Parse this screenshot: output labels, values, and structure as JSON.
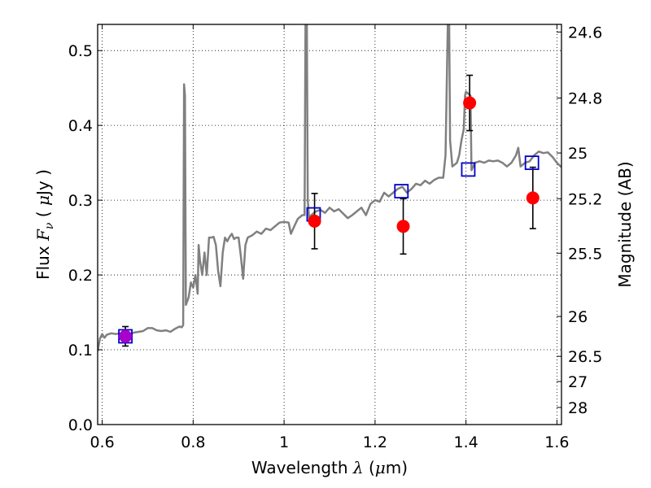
{
  "chart_data": {
    "type": "scatter",
    "title": "",
    "xlabel": "Wavelength  λ (μm)",
    "xlabel_parts": [
      "Wavelength  ",
      "λ",
      " (",
      "μ",
      "m)"
    ],
    "ylabel": "Flux  Fν  ( μJy )",
    "ylabel_parts": [
      "Flux  ",
      "F",
      "ν",
      "  ( ",
      "μ",
      "Jy )"
    ],
    "y2label": "Magnitude (AB)",
    "xlim": [
      0.59,
      1.61
    ],
    "ylim": [
      0.0,
      0.535
    ],
    "x_ticks": [
      0.6,
      0.8,
      1.0,
      1.2,
      1.4,
      1.6
    ],
    "x_tick_labels": [
      "0.6",
      "0.8",
      "1",
      "1.2",
      "1.4",
      "1.6"
    ],
    "y_ticks": [
      0.0,
      0.1,
      0.2,
      0.3,
      0.4,
      0.5
    ],
    "y_tick_labels": [
      "0.0",
      "0.1",
      "0.2",
      "0.3",
      "0.4",
      "0.5"
    ],
    "y2_ticks": [
      {
        "label": "24.6",
        "mag": 24.6
      },
      {
        "label": "24.8",
        "mag": 24.8
      },
      {
        "label": "25",
        "mag": 25.0
      },
      {
        "label": "25.2",
        "mag": 25.2
      },
      {
        "label": "25.5",
        "mag": 25.5
      },
      {
        "label": "26",
        "mag": 26.0
      },
      {
        "label": "26.5",
        "mag": 26.5
      },
      {
        "label": "27",
        "mag": 27.0
      },
      {
        "label": "28",
        "mag": 28.0
      }
    ],
    "grid": true,
    "series": [
      {
        "kind": "model_spectrum",
        "color": "#808080",
        "points": [
          [
            0.59,
            0.098
          ],
          [
            0.595,
            0.115
          ],
          [
            0.6,
            0.121
          ],
          [
            0.605,
            0.116
          ],
          [
            0.61,
            0.12
          ],
          [
            0.62,
            0.122
          ],
          [
            0.63,
            0.121
          ],
          [
            0.64,
            0.122
          ],
          [
            0.65,
            0.12
          ],
          [
            0.66,
            0.121
          ],
          [
            0.67,
            0.123
          ],
          [
            0.68,
            0.124
          ],
          [
            0.69,
            0.125
          ],
          [
            0.7,
            0.129
          ],
          [
            0.71,
            0.129
          ],
          [
            0.72,
            0.126
          ],
          [
            0.73,
            0.125
          ],
          [
            0.74,
            0.126
          ],
          [
            0.75,
            0.124
          ],
          [
            0.76,
            0.128
          ],
          [
            0.77,
            0.131
          ],
          [
            0.775,
            0.13
          ],
          [
            0.778,
            0.133
          ],
          [
            0.78,
            0.455
          ],
          [
            0.782,
            0.44
          ],
          [
            0.784,
            0.16
          ],
          [
            0.79,
            0.17
          ],
          [
            0.795,
            0.19
          ],
          [
            0.8,
            0.183
          ],
          [
            0.805,
            0.2
          ],
          [
            0.81,
            0.175
          ],
          [
            0.812,
            0.24
          ],
          [
            0.815,
            0.22
          ],
          [
            0.82,
            0.2
          ],
          [
            0.825,
            0.23
          ],
          [
            0.83,
            0.2
          ],
          [
            0.835,
            0.25
          ],
          [
            0.84,
            0.25
          ],
          [
            0.845,
            0.251
          ],
          [
            0.85,
            0.24
          ],
          [
            0.855,
            0.205
          ],
          [
            0.86,
            0.185
          ],
          [
            0.865,
            0.23
          ],
          [
            0.87,
            0.25
          ],
          [
            0.875,
            0.245
          ],
          [
            0.88,
            0.251
          ],
          [
            0.885,
            0.255
          ],
          [
            0.89,
            0.248
          ],
          [
            0.895,
            0.25
          ],
          [
            0.9,
            0.25
          ],
          [
            0.905,
            0.225
          ],
          [
            0.91,
            0.195
          ],
          [
            0.915,
            0.24
          ],
          [
            0.92,
            0.25
          ],
          [
            0.93,
            0.253
          ],
          [
            0.94,
            0.258
          ],
          [
            0.95,
            0.255
          ],
          [
            0.96,
            0.262
          ],
          [
            0.97,
            0.26
          ],
          [
            0.98,
            0.265
          ],
          [
            0.99,
            0.27
          ],
          [
            1.0,
            0.271
          ],
          [
            1.01,
            0.27
          ],
          [
            1.015,
            0.255
          ],
          [
            1.02,
            0.262
          ],
          [
            1.03,
            0.275
          ],
          [
            1.04,
            0.28
          ],
          [
            1.045,
            0.28
          ],
          [
            1.047,
            0.535
          ],
          [
            1.05,
            0.535
          ],
          [
            1.052,
            0.3
          ],
          [
            1.055,
            0.275
          ],
          [
            1.06,
            0.28
          ],
          [
            1.07,
            0.285
          ],
          [
            1.08,
            0.287
          ],
          [
            1.09,
            0.283
          ],
          [
            1.1,
            0.29
          ],
          [
            1.11,
            0.285
          ],
          [
            1.12,
            0.288
          ],
          [
            1.13,
            0.282
          ],
          [
            1.14,
            0.276
          ],
          [
            1.15,
            0.28
          ],
          [
            1.16,
            0.285
          ],
          [
            1.17,
            0.29
          ],
          [
            1.18,
            0.28
          ],
          [
            1.19,
            0.295
          ],
          [
            1.2,
            0.3
          ],
          [
            1.21,
            0.298
          ],
          [
            1.22,
            0.31
          ],
          [
            1.23,
            0.305
          ],
          [
            1.24,
            0.31
          ],
          [
            1.25,
            0.315
          ],
          [
            1.26,
            0.318
          ],
          [
            1.27,
            0.31
          ],
          [
            1.28,
            0.315
          ],
          [
            1.29,
            0.322
          ],
          [
            1.3,
            0.32
          ],
          [
            1.31,
            0.326
          ],
          [
            1.32,
            0.322
          ],
          [
            1.33,
            0.327
          ],
          [
            1.34,
            0.33
          ],
          [
            1.35,
            0.33
          ],
          [
            1.355,
            0.36
          ],
          [
            1.36,
            0.535
          ],
          [
            1.363,
            0.535
          ],
          [
            1.365,
            0.38
          ],
          [
            1.37,
            0.345
          ],
          [
            1.38,
            0.35
          ],
          [
            1.385,
            0.36
          ],
          [
            1.39,
            0.38
          ],
          [
            1.395,
            0.395
          ],
          [
            1.398,
            0.44
          ],
          [
            1.4,
            0.445
          ],
          [
            1.41,
            0.44
          ],
          [
            1.412,
            0.34
          ],
          [
            1.42,
            0.35
          ],
          [
            1.43,
            0.352
          ],
          [
            1.44,
            0.35
          ],
          [
            1.45,
            0.353
          ],
          [
            1.46,
            0.352
          ],
          [
            1.47,
            0.353
          ],
          [
            1.48,
            0.35
          ],
          [
            1.49,
            0.345
          ],
          [
            1.5,
            0.35
          ],
          [
            1.51,
            0.36
          ],
          [
            1.515,
            0.37
          ],
          [
            1.52,
            0.345
          ],
          [
            1.53,
            0.35
          ],
          [
            1.54,
            0.352
          ],
          [
            1.55,
            0.36
          ],
          [
            1.56,
            0.365
          ],
          [
            1.57,
            0.363
          ],
          [
            1.58,
            0.364
          ],
          [
            1.59,
            0.358
          ],
          [
            1.6,
            0.35
          ],
          [
            1.61,
            0.344
          ]
        ]
      },
      {
        "kind": "model_photometry",
        "marker": "open-square",
        "color": "#0000cc",
        "x": [
          0.651,
          1.065,
          1.258,
          1.405,
          1.545
        ],
        "y": [
          0.118,
          0.281,
          0.312,
          0.341,
          0.35
        ]
      },
      {
        "kind": "observed_photometry",
        "marker": "filled-circle",
        "color": "#ff0000",
        "x": [
          1.067,
          1.262,
          1.408,
          1.547
        ],
        "y": [
          0.272,
          0.265,
          0.43,
          0.303
        ],
        "yerr": [
          0.037,
          0.037,
          0.037,
          0.041
        ]
      },
      {
        "kind": "observed_photometry_first_band",
        "marker": "filled-circle",
        "color": "#aa00cc",
        "x": [
          0.651
        ],
        "y": [
          0.118
        ],
        "yerr": [
          0.013
        ]
      }
    ]
  }
}
